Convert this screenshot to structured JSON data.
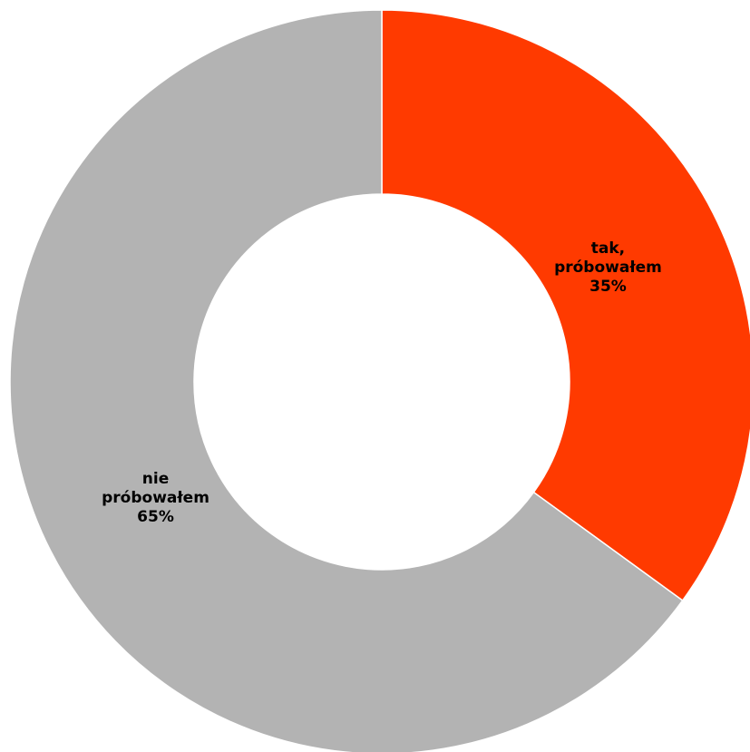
{
  "chart_data": {
    "type": "pie",
    "variant": "donut",
    "slices": [
      {
        "label_lines": [
          "tak,",
          "próbowałem"
        ],
        "value_text": "35%",
        "value": 35,
        "color": "#ff3a00"
      },
      {
        "label_lines": [
          "nie",
          "próbowałem"
        ],
        "value_text": "65%",
        "value": 65,
        "color": "#b3b3b3"
      }
    ],
    "start_angle": "12 o'clock",
    "direction": "clockwise",
    "slice_border_color": "#ffffff",
    "legend": "none"
  }
}
